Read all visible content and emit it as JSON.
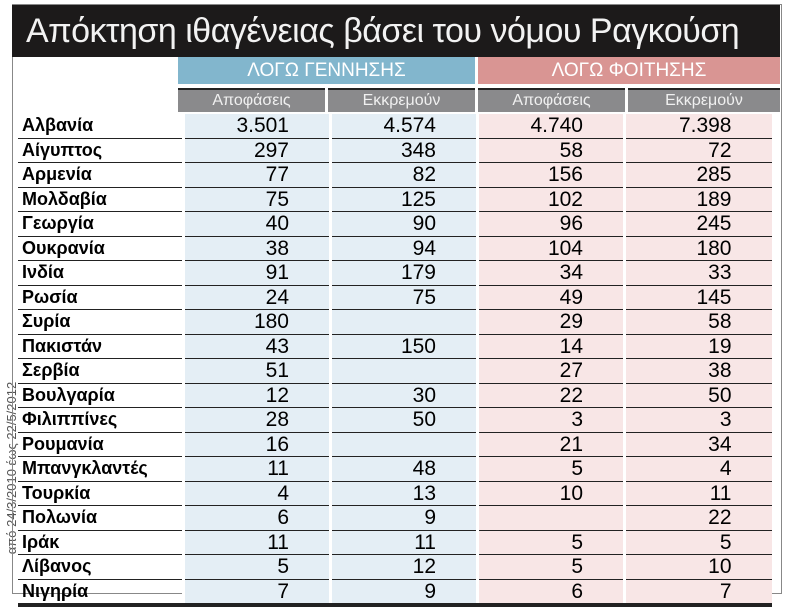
{
  "title": "Απόκτηση ιθαγένειας βάσει του νόμου Ραγκούση",
  "side_note": "από 24/3/2010 έως 22/5/2012",
  "colors": {
    "title_bg": "#1c1a1a",
    "birth": "#82b6cd",
    "study": "#d99593",
    "subheader": "#8a8a8c"
  },
  "chart_data": {
    "type": "table",
    "title": "Απόκτηση ιθαγένειας βάσει του νόμου Ραγκούση",
    "groups": [
      "ΛΟΓΩ ΓΕΝΝΗΣΗΣ",
      "ΛΟΓΩ ΦΟΙΤΗΣΗΣ"
    ],
    "columns": [
      "Αποφάσεις",
      "Εκκρεμούν",
      "Αποφάσεις",
      "Εκκρεμούν"
    ],
    "rows": [
      {
        "country": "Αλβανία",
        "values": [
          "3.501",
          "4.574",
          "4.740",
          "7.398"
        ]
      },
      {
        "country": "Αίγυπτος",
        "values": [
          "297",
          "348",
          "58",
          "72"
        ]
      },
      {
        "country": "Αρμενία",
        "values": [
          "77",
          "82",
          "156",
          "285"
        ]
      },
      {
        "country": "Μολδαβία",
        "values": [
          "75",
          "125",
          "102",
          "189"
        ]
      },
      {
        "country": "Γεωργία",
        "values": [
          "40",
          "90",
          "96",
          "245"
        ]
      },
      {
        "country": "Ουκρανία",
        "values": [
          "38",
          "94",
          "104",
          "180"
        ]
      },
      {
        "country": "Ινδία",
        "values": [
          "91",
          "179",
          "34",
          "33"
        ]
      },
      {
        "country": "Ρωσία",
        "values": [
          "24",
          "75",
          "49",
          "145"
        ]
      },
      {
        "country": "Συρία",
        "values": [
          "180",
          "",
          "29",
          "58"
        ]
      },
      {
        "country": "Πακιστάν",
        "values": [
          "43",
          "150",
          "14",
          "19"
        ]
      },
      {
        "country": "Σερβία",
        "values": [
          "51",
          "",
          "27",
          "38"
        ]
      },
      {
        "country": "Βουλγαρία",
        "values": [
          "12",
          "30",
          "22",
          "50"
        ]
      },
      {
        "country": "Φιλιππίνες",
        "values": [
          "28",
          "50",
          "3",
          "3"
        ]
      },
      {
        "country": "Ρουμανία",
        "values": [
          "16",
          "",
          "21",
          "34"
        ]
      },
      {
        "country": "Μπανγκλαντές",
        "values": [
          "11",
          "48",
          "5",
          "4"
        ]
      },
      {
        "country": "Τουρκία",
        "values": [
          "4",
          "13",
          "10",
          "11"
        ]
      },
      {
        "country": "Πολωνία",
        "values": [
          "6",
          "9",
          "",
          "22"
        ]
      },
      {
        "country": "Ιράκ",
        "values": [
          "11",
          "11",
          "5",
          "5"
        ]
      },
      {
        "country": "Λίβανος",
        "values": [
          "5",
          "12",
          "5",
          "10"
        ]
      },
      {
        "country": "Νιγηρία",
        "values": [
          "7",
          "9",
          "6",
          "7"
        ]
      }
    ]
  }
}
